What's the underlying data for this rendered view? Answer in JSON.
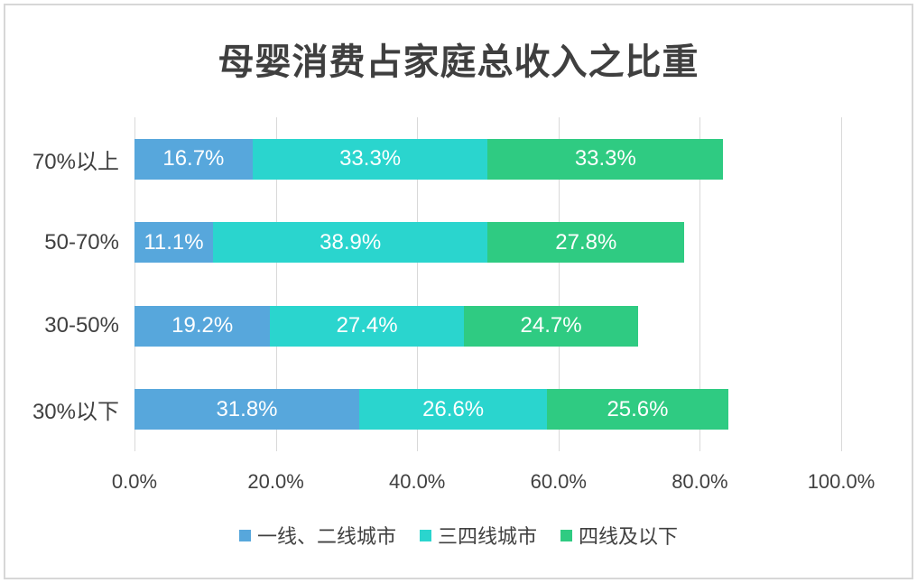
{
  "colors": {
    "title_text": "#3f3f3f",
    "axis_text": "#404040",
    "bar_label_text": "#ffffff",
    "gridline": "#d9d9d9",
    "frame_border": "#d7d7d7",
    "series_blue": "#57a7dc",
    "series_cyan": "#2ad5ce",
    "series_green": "#2fcb82"
  },
  "chart_data": {
    "type": "bar",
    "orientation": "horizontal",
    "stacked": true,
    "title": "母婴消费占家庭总收入之比重",
    "categories": [
      "70%以上",
      "50-70%",
      "30-50%",
      "30%以下"
    ],
    "series": [
      {
        "name": "一线、二线城市",
        "color": "#57a7dc",
        "values": [
          16.7,
          11.1,
          19.2,
          31.8
        ],
        "data_labels": [
          "16.7%",
          "11.1%",
          "19.2%",
          "31.8%"
        ]
      },
      {
        "name": "三四线城市",
        "color": "#2ad5ce",
        "values": [
          33.3,
          38.9,
          27.4,
          26.6
        ],
        "data_labels": [
          "33.3%",
          "38.9%",
          "27.4%",
          "26.6%"
        ]
      },
      {
        "name": "四线及以下",
        "color": "#2fcb82",
        "values": [
          33.3,
          27.8,
          24.7,
          25.6
        ],
        "data_labels": [
          "33.3%",
          "27.8%",
          "24.7%",
          "25.6%"
        ]
      }
    ],
    "xlim": [
      0,
      100
    ],
    "x_tick_values": [
      0,
      20,
      40,
      60,
      80,
      100
    ],
    "x_tick_labels": [
      "0.0%",
      "20.0%",
      "40.0%",
      "60.0%",
      "80.0%",
      "100.0%"
    ],
    "grid": true,
    "legend_position": "bottom"
  }
}
